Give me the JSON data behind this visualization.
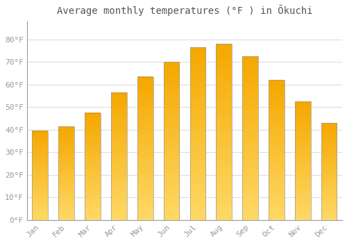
{
  "title": "Average monthly temperatures (°F ) in Ōkuchi",
  "months": [
    "Jan",
    "Feb",
    "Mar",
    "Apr",
    "May",
    "Jun",
    "Jul",
    "Aug",
    "Sep",
    "Oct",
    "Nov",
    "Dec"
  ],
  "values": [
    39.5,
    41.5,
    47.5,
    56.5,
    63.5,
    70.0,
    76.5,
    78.0,
    72.5,
    62.0,
    52.5,
    43.0
  ],
  "bar_color_bottom": "#FFD966",
  "bar_color_top": "#F5A800",
  "bar_edge_color": "#999999",
  "background_color": "#ffffff",
  "grid_color": "#dddddd",
  "text_color": "#999999",
  "ylim": [
    0,
    88
  ],
  "yticks": [
    0,
    10,
    20,
    30,
    40,
    50,
    60,
    70,
    80
  ],
  "title_fontsize": 10,
  "tick_fontsize": 8
}
